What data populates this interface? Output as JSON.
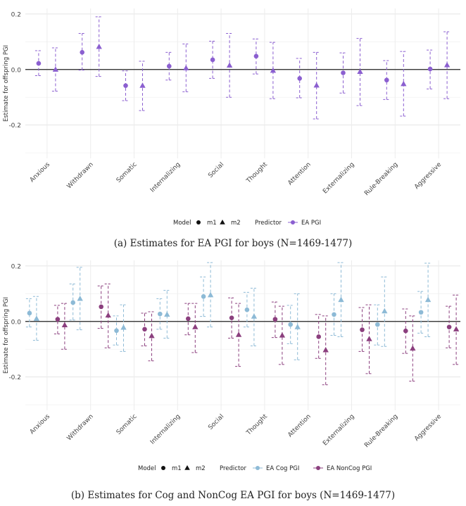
{
  "chart_data": [
    {
      "type": "scatter",
      "subtype": "point-range with error bars",
      "ylabel": "Estimate for offspring PGI",
      "xlabel": "",
      "ylim": [
        -0.32,
        0.22
      ],
      "yticks": [
        -0.2,
        0.0,
        0.2
      ],
      "ytick_labels": [
        "-0.2",
        "0.0",
        "0.2"
      ],
      "grid": true,
      "reference_line": 0,
      "categories": [
        "Anxious",
        "Withdrawn",
        "Somatic",
        "Internalizing",
        "Social",
        "Thought",
        "Attention",
        "Externalizing",
        "Rule-Breaking",
        "Aggressive"
      ],
      "series": [
        {
          "name": "EA PGI",
          "model": "m1",
          "color": "#8b5fd0",
          "values": [
            0.022,
            0.062,
            -0.058,
            0.012,
            0.035,
            0.048,
            -0.032,
            -0.012,
            -0.038,
            0.002
          ],
          "lower": [
            -0.022,
            -0.002,
            -0.112,
            -0.038,
            -0.032,
            -0.016,
            -0.102,
            -0.085,
            -0.108,
            -0.07
          ],
          "upper": [
            0.068,
            0.13,
            -0.005,
            0.062,
            0.102,
            0.11,
            0.04,
            0.06,
            0.032,
            0.07
          ]
        },
        {
          "name": "EA PGI",
          "model": "m2",
          "color": "#8b5fd0",
          "values": [
            0.0,
            0.082,
            -0.058,
            0.005,
            0.015,
            -0.004,
            -0.057,
            -0.008,
            -0.052,
            0.016
          ],
          "lower": [
            -0.078,
            -0.025,
            -0.148,
            -0.08,
            -0.1,
            -0.105,
            -0.178,
            -0.13,
            -0.168,
            -0.105
          ],
          "upper": [
            0.078,
            0.19,
            0.03,
            0.092,
            0.13,
            0.098,
            0.062,
            0.112,
            0.065,
            0.136
          ]
        }
      ],
      "legend": {
        "model_title": "Model",
        "model_items": [
          "m1",
          "m2"
        ],
        "predictor_title": "Predictor",
        "predictor_items": [
          "EA PGI"
        ]
      }
    },
    {
      "type": "scatter",
      "subtype": "point-range with error bars",
      "ylabel": "Estimate for offspring PGI",
      "xlabel": "",
      "ylim": [
        -0.32,
        0.22
      ],
      "yticks": [
        -0.2,
        0.0,
        0.2
      ],
      "ytick_labels": [
        "-0.2",
        "0.0",
        "0.2"
      ],
      "grid": true,
      "reference_line": 0,
      "categories": [
        "Anxious",
        "Withdrawn",
        "Somatic",
        "Internalizing",
        "Social",
        "Thought",
        "Attention",
        "Externalizing",
        "Rule-Breaking",
        "Aggressive"
      ],
      "series": [
        {
          "name": "EA Cog PGI",
          "model": "m1",
          "color": "#8dbad6",
          "values": [
            0.03,
            0.068,
            -0.033,
            0.027,
            0.09,
            0.042,
            -0.011,
            0.025,
            -0.011,
            0.033
          ],
          "lower": [
            -0.02,
            0.005,
            -0.085,
            -0.028,
            0.018,
            -0.02,
            -0.08,
            -0.05,
            -0.085,
            -0.042
          ],
          "upper": [
            0.082,
            0.135,
            0.02,
            0.082,
            0.16,
            0.105,
            0.058,
            0.1,
            0.06,
            0.108
          ]
        },
        {
          "name": "EA Cog PGI",
          "model": "m2",
          "color": "#8dbad6",
          "values": [
            0.01,
            0.082,
            -0.022,
            0.025,
            0.095,
            0.018,
            -0.02,
            0.078,
            0.037,
            0.078
          ],
          "lower": [
            -0.068,
            -0.03,
            -0.108,
            -0.06,
            -0.02,
            -0.088,
            -0.138,
            -0.055,
            -0.09,
            -0.055
          ],
          "upper": [
            0.09,
            0.195,
            0.06,
            0.112,
            0.212,
            0.12,
            0.1,
            0.212,
            0.16,
            0.21
          ]
        },
        {
          "name": "EA NonCog PGI",
          "model": "m1",
          "color": "#8b3f7e",
          "values": [
            0.008,
            0.053,
            -0.028,
            0.01,
            0.013,
            0.008,
            -0.055,
            -0.03,
            -0.034,
            -0.02
          ],
          "lower": [
            -0.045,
            -0.025,
            -0.088,
            -0.048,
            -0.06,
            -0.058,
            -0.133,
            -0.108,
            -0.115,
            -0.095
          ],
          "upper": [
            0.058,
            0.128,
            0.03,
            0.065,
            0.085,
            0.07,
            0.025,
            0.05,
            0.045,
            0.055
          ]
        },
        {
          "name": "EA NonCog PGI",
          "model": "m2",
          "color": "#8b3f7e",
          "values": [
            -0.013,
            0.022,
            -0.052,
            -0.02,
            -0.048,
            -0.05,
            -0.103,
            -0.063,
            -0.097,
            -0.028
          ],
          "lower": [
            -0.1,
            -0.095,
            -0.142,
            -0.112,
            -0.162,
            -0.155,
            -0.228,
            -0.188,
            -0.215,
            -0.155
          ],
          "upper": [
            0.065,
            0.135,
            0.035,
            0.065,
            0.065,
            0.055,
            0.02,
            0.06,
            0.02,
            0.095
          ]
        }
      ],
      "legend": {
        "model_title": "Model",
        "model_items": [
          "m1",
          "m2"
        ],
        "predictor_title": "Predictor",
        "predictor_items": [
          "EA Cog PGI",
          "EA NonCog PGI"
        ]
      }
    }
  ],
  "captions": {
    "a": "(a) Estimates for EA PGI for boys (N=1469-1477)",
    "b": "(b) Estimates for Cog and NonCog EA PGI for boys (N=1469-1477)"
  }
}
